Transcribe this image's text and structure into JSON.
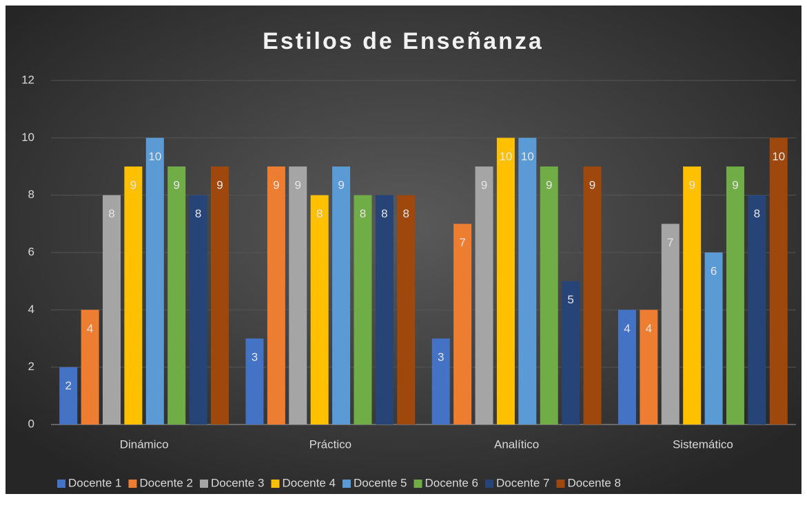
{
  "chart_data": {
    "type": "bar",
    "title": "Estilos de Enseñanza",
    "categories": [
      "Dinámico",
      "Práctico",
      "Analítico",
      "Sistemático"
    ],
    "series": [
      {
        "name": "Docente 1",
        "color": "#4472c4",
        "values": [
          2,
          3,
          3,
          4
        ]
      },
      {
        "name": "Docente 2",
        "color": "#ed7d31",
        "values": [
          4,
          9,
          7,
          4
        ]
      },
      {
        "name": "Docente 3",
        "color": "#a5a5a5",
        "values": [
          8,
          9,
          9,
          7
        ]
      },
      {
        "name": "Docente 4",
        "color": "#ffc000",
        "values": [
          9,
          8,
          10,
          9
        ]
      },
      {
        "name": "Docente 5",
        "color": "#5b9bd5",
        "values": [
          10,
          9,
          10,
          6
        ]
      },
      {
        "name": "Docente 6",
        "color": "#70ad47",
        "values": [
          9,
          8,
          9,
          9
        ]
      },
      {
        "name": "Docente 7",
        "color": "#264478",
        "values": [
          8,
          8,
          5,
          8
        ]
      },
      {
        "name": "Docente 8",
        "color": "#9e480e",
        "values": [
          9,
          8,
          9,
          10
        ]
      }
    ],
    "ylim": [
      0,
      12
    ],
    "yticks": [
      0,
      2,
      4,
      6,
      8,
      10,
      12
    ],
    "grid": true,
    "legend": "bottom"
  }
}
